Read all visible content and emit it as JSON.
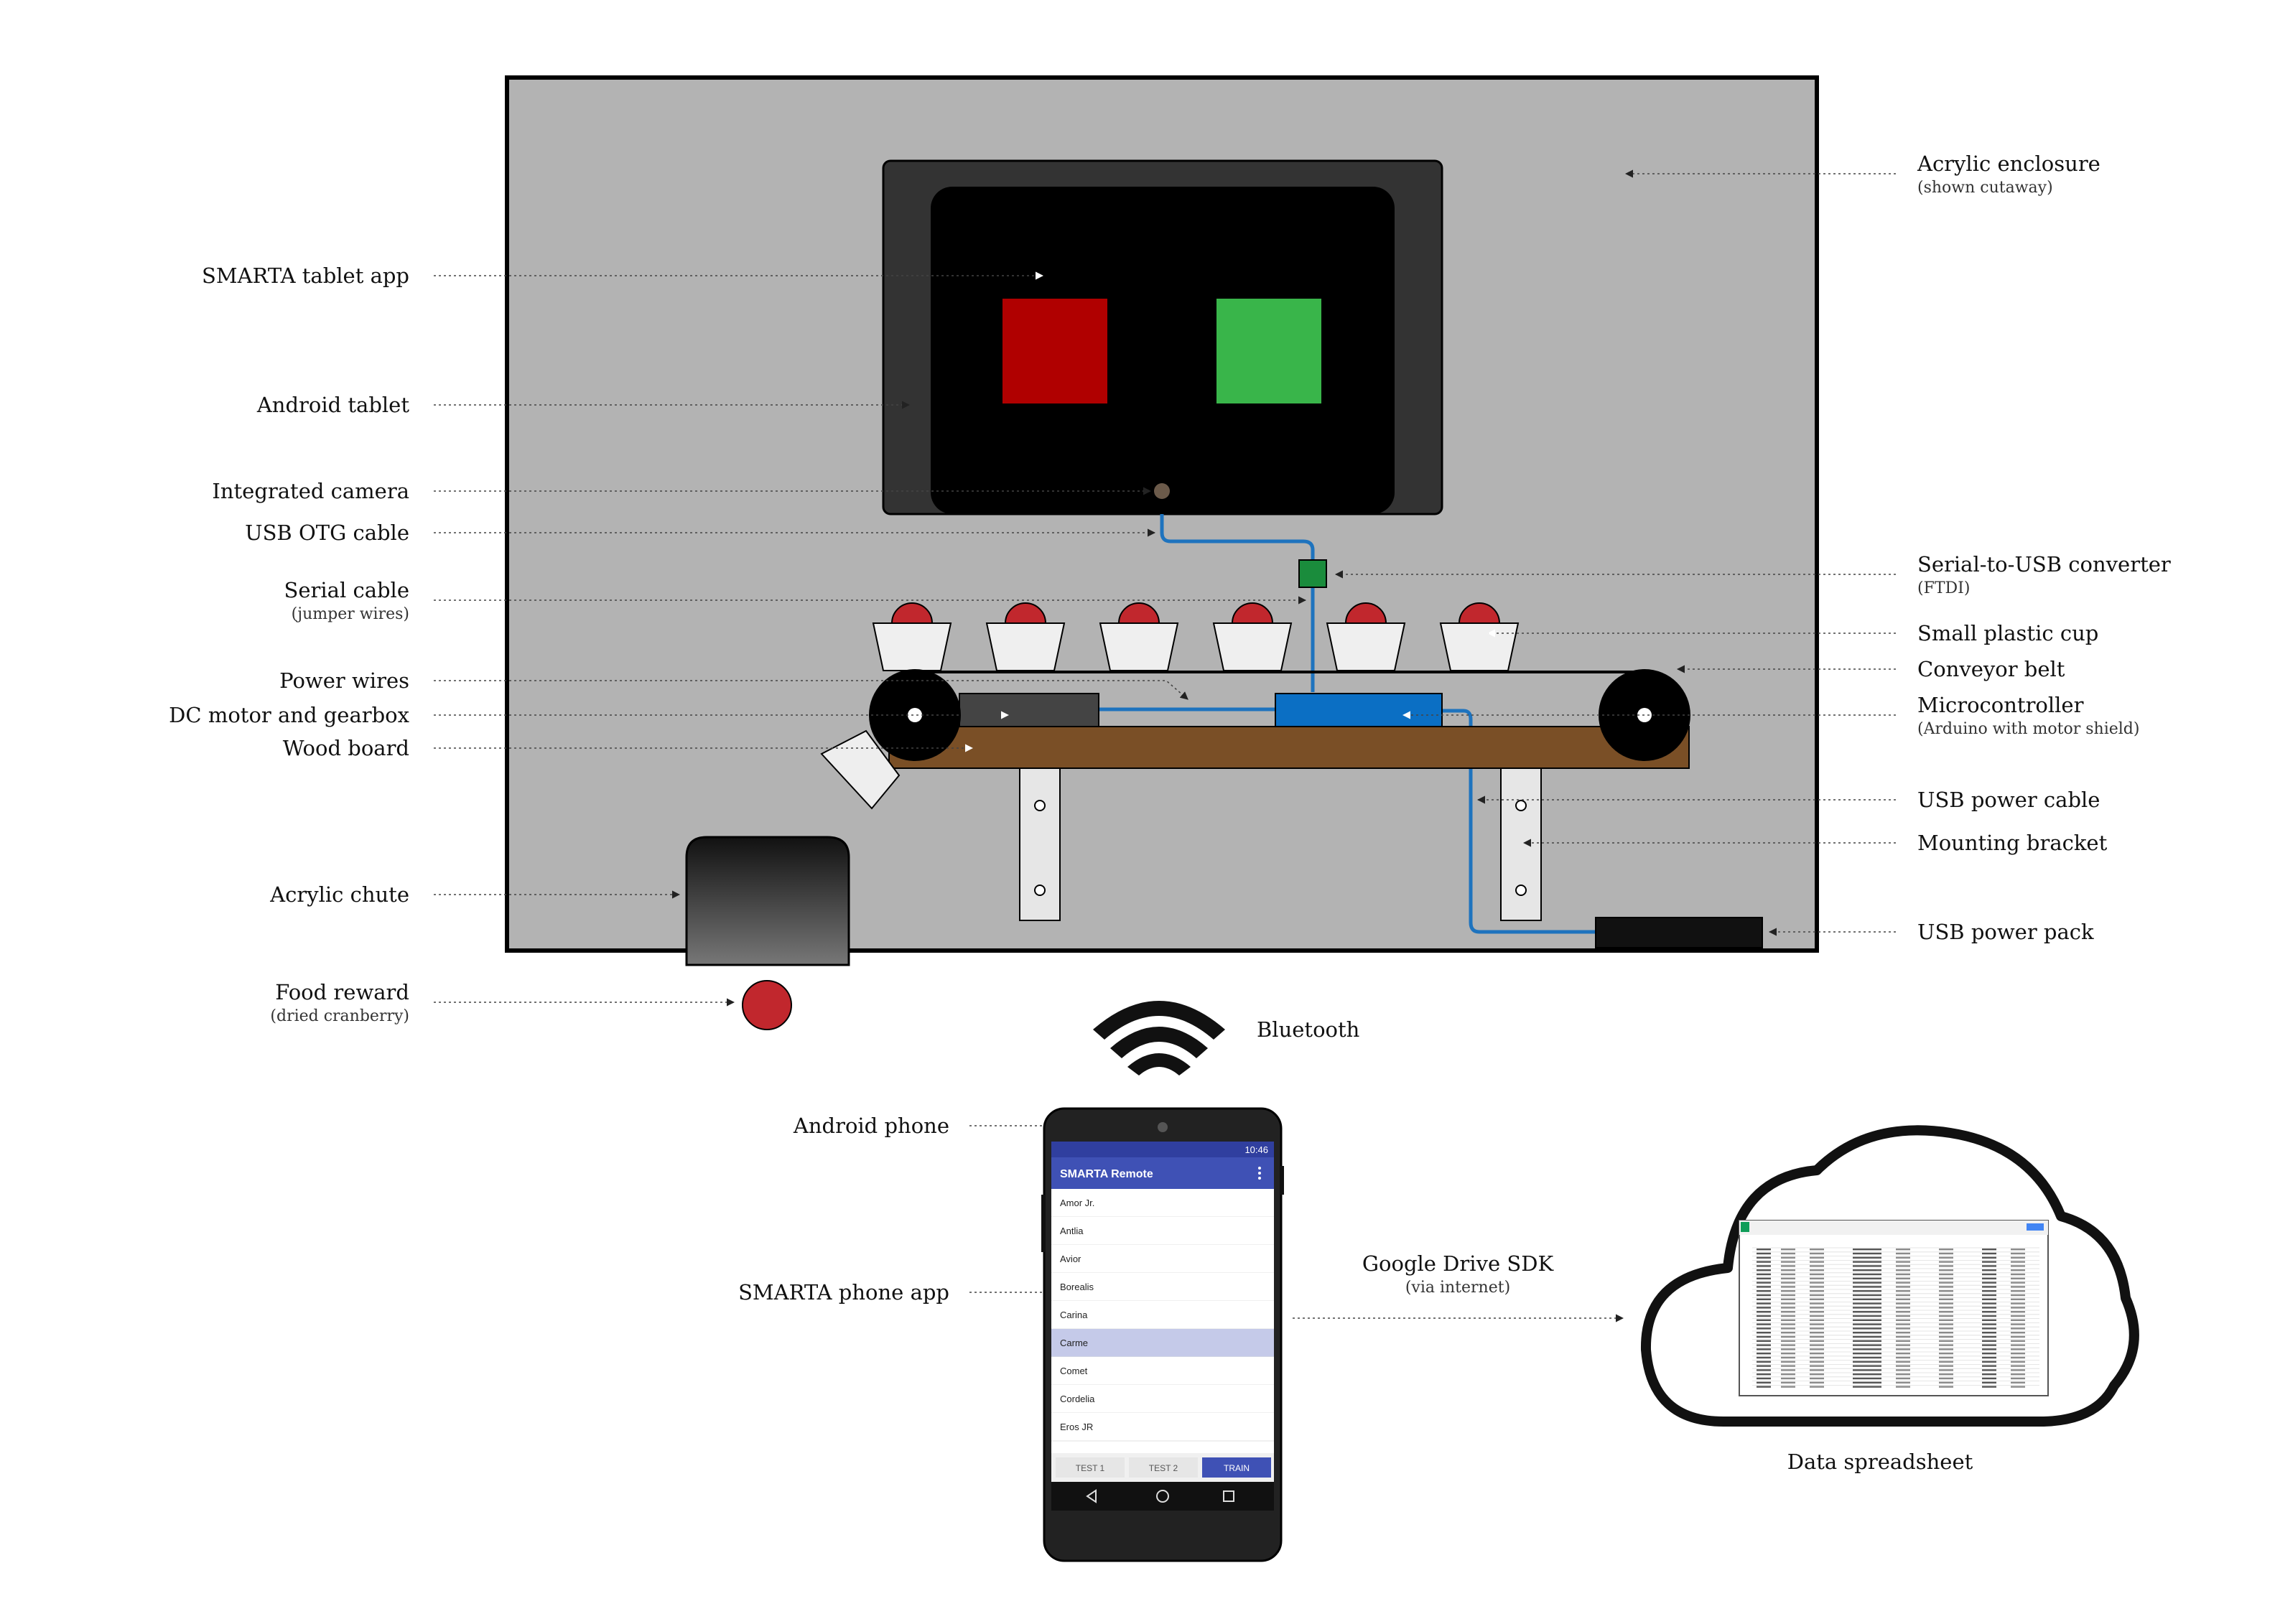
{
  "labels": {
    "acrylic_enclosure": "Acrylic enclosure",
    "acrylic_enclosure_sub": "(shown cutaway)",
    "tablet_app": "SMARTA tablet app",
    "android_tablet": "Android tablet",
    "integrated_camera": "Integrated camera",
    "usb_otg_cable": "USB OTG cable",
    "serial_usb_converter": "Serial-to-USB converter",
    "serial_usb_converter_sub": "(FTDI)",
    "serial_cable": "Serial cable",
    "serial_cable_sub": "(jumper wires)",
    "small_plastic_cup": "Small plastic cup",
    "conveyor_belt": "Conveyor belt",
    "power_wires": "Power wires",
    "dc_motor": "DC motor and gearbox",
    "microcontroller": "Microcontroller",
    "microcontroller_sub": "(Arduino with motor shield)",
    "wood_board": "Wood board",
    "usb_power_cable": "USB power cable",
    "mounting_bracket": "Mounting bracket",
    "acrylic_chute": "Acrylic chute",
    "usb_power_pack": "USB power pack",
    "food_reward": "Food reward",
    "food_reward_sub": "(dried cranberry)",
    "bluetooth": "Bluetooth",
    "android_phone": "Android phone",
    "phone_app": "SMARTA phone app",
    "google_drive": "Google Drive SDK",
    "google_drive_sub": "(via internet)",
    "data_spreadsheet": "Data spreadsheet"
  },
  "phone": {
    "status_time": "10:46",
    "app_title": "SMARTA Remote",
    "menu_icon": "overflow-menu-icon",
    "list_items": [
      "Amor Jr.",
      "Antlia",
      "Avior",
      "Borealis",
      "Carina",
      "Carme",
      "Comet",
      "Cordelia",
      "Eros JR"
    ],
    "selected_item": "Carme",
    "buttons": [
      "TEST 1",
      "TEST 2",
      "TRAIN"
    ],
    "active_button": "TRAIN",
    "nav_icons": [
      "back-icon",
      "home-icon",
      "recents-icon"
    ]
  },
  "colors": {
    "enclosure": "#b3b3b3",
    "tablet_frame": "#333333",
    "tablet_screen": "#000000",
    "red_square": "#b00000",
    "green_square": "#39b54a",
    "cable_blue": "#1e73be",
    "microcontroller": "#0b6fc4",
    "converter": "#1a8c3c",
    "wood": "#7a4f26",
    "cranberry": "#c1272d",
    "phone_bar": "#3f51b5",
    "phone_selected": "#c5cae9"
  }
}
